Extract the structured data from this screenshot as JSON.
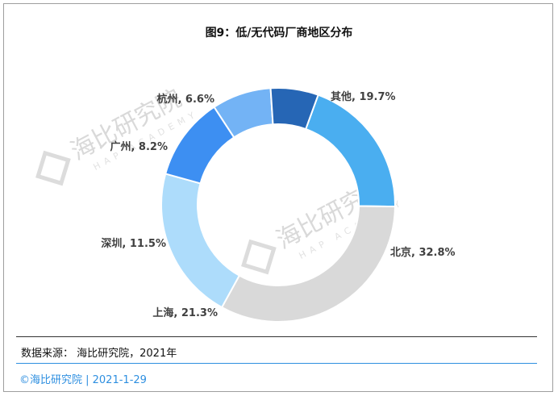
{
  "chart_data": {
    "type": "pie",
    "title": "图9：低/无代码厂商地区分布",
    "categories": [
      "其他",
      "北京",
      "上海",
      "深圳",
      "广州",
      "杭州"
    ],
    "values": [
      19.7,
      32.8,
      21.3,
      11.5,
      8.2,
      6.6
    ],
    "colors": [
      "#4aaef0",
      "#d9d9d9",
      "#addcfb",
      "#3d8ff2",
      "#73b3f5",
      "#2666b5"
    ],
    "labels": [
      "其他, 19.7%",
      "北京, 32.8%",
      "上海, 21.3%",
      "深圳, 11.5%",
      "广州, 8.2%",
      "杭州, 6.6%"
    ],
    "donut": true
  },
  "watermark": {
    "name": "海比研究院",
    "sub": "HAP ACADEMY"
  },
  "source": "数据来源： 海比研究院，2021年",
  "footer": "©海比研究院 | 2021-1-29"
}
